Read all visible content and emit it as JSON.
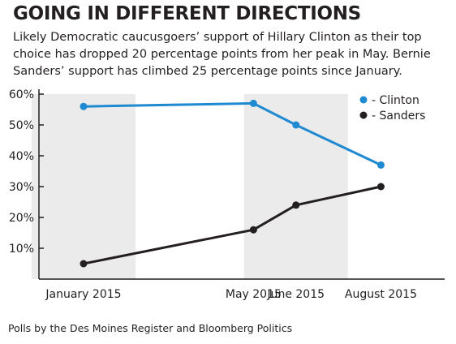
{
  "title": "GOING IN DIFFERENT DIRECTIONS",
  "subtitle": "Likely Democratic caucusgoers’ support of Hillary Clinton as their top choice has dropped 20 percentage points from her peak in May. Bernie Sanders’ support has climbed 25 percentage points since January.",
  "source": "Polls by the Des Moines Register and Bloomberg Politics",
  "colors": {
    "clinton": "#1f8ad2",
    "sanders": "#231f20",
    "band": "#ebebeb",
    "axis": "#231f20"
  },
  "chart_data": {
    "type": "line",
    "title": "GOING IN DIFFERENT DIRECTIONS",
    "xlabel": "",
    "ylabel": "",
    "categories": [
      "January 2015",
      "May 2015",
      "June 2015",
      "August 2015"
    ],
    "x_positions": [
      1,
      5,
      6,
      8
    ],
    "xlim": [
      -0.05,
      9.5
    ],
    "ylim": [
      0,
      60
    ],
    "y_ticks": [
      10,
      20,
      30,
      40,
      50,
      60
    ],
    "y_tick_labels": [
      "10%",
      "20%",
      "30%",
      "40%",
      "50%",
      "60%"
    ],
    "grid": false,
    "legend_position": "top-right",
    "series": [
      {
        "name": "- Clinton",
        "values": [
          56,
          57,
          50,
          37
        ]
      },
      {
        "name": "- Sanders",
        "values": [
          5,
          16,
          24,
          30
        ]
      }
    ]
  }
}
